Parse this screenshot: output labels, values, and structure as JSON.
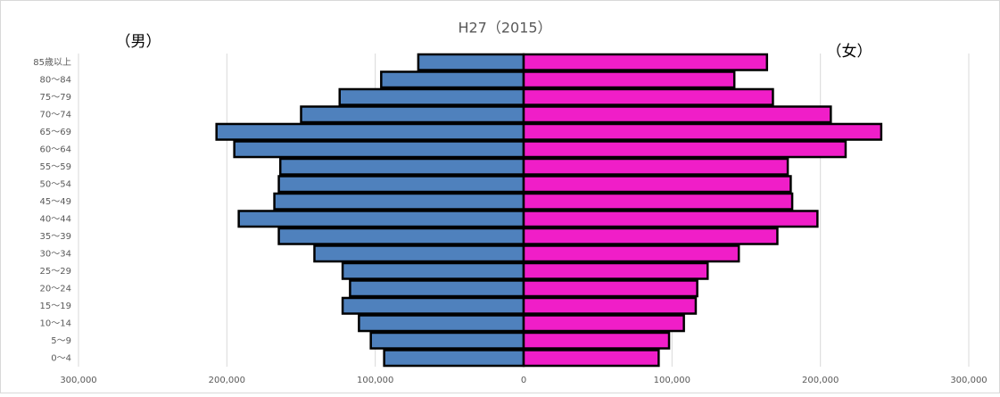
{
  "chart_data": {
    "type": "pyramid",
    "title": "H27（2015）",
    "categories": [
      "85歳以上",
      "80〜84",
      "75〜79",
      "70〜74",
      "65〜69",
      "60〜64",
      "55〜59",
      "50〜54",
      "45〜49",
      "40〜44",
      "35〜39",
      "30〜34",
      "25〜29",
      "20〜24",
      "15〜19",
      "10〜14",
      "5〜9",
      "0〜4"
    ],
    "series": [
      {
        "name": "（男）",
        "color": "#4f81bd",
        "values": [
          71000,
          96000,
          124000,
          150000,
          207000,
          195000,
          164000,
          165000,
          168000,
          192000,
          165000,
          141000,
          122000,
          117000,
          122000,
          111000,
          103000,
          94000
        ]
      },
      {
        "name": "（女）",
        "color": "#f01ec8",
        "values": [
          164000,
          142000,
          168000,
          207000,
          241000,
          217000,
          178000,
          180000,
          181000,
          198000,
          171000,
          145000,
          124000,
          117000,
          116000,
          108000,
          98000,
          91000
        ]
      }
    ],
    "xlim": [
      -300000,
      300000
    ],
    "xticks": [
      {
        "value": -300000,
        "label": "300,000"
      },
      {
        "value": -200000,
        "label": "200,000"
      },
      {
        "value": -100000,
        "label": "100,000"
      },
      0,
      {
        "value": 100000,
        "label": "100,000"
      },
      {
        "value": 200000,
        "label": "200,000"
      },
      {
        "value": 300000,
        "label": "300,000"
      }
    ],
    "grid": true
  }
}
